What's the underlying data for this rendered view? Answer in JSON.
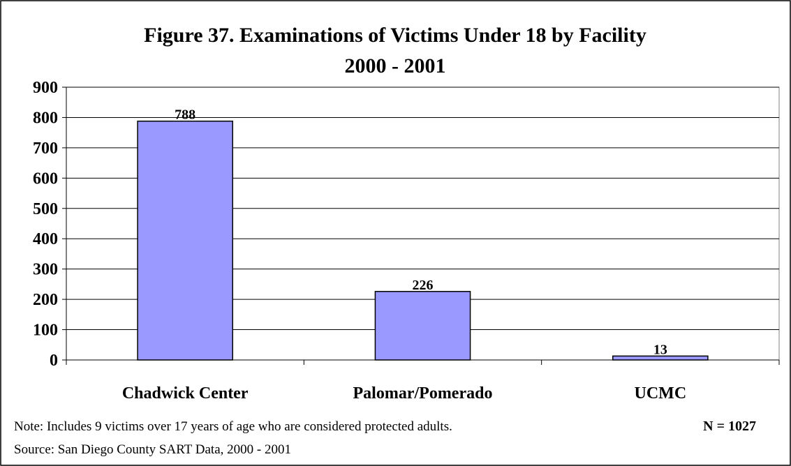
{
  "chart_data": {
    "type": "bar",
    "title": [
      "Figure 37. Examinations of Victims Under 18 by Facility",
      "2000 - 2001"
    ],
    "categories": [
      "Chadwick Center",
      "Palomar/Pomerado",
      "UCMC"
    ],
    "values": [
      788,
      226,
      13
    ],
    "color": "#9999ff",
    "ylim": [
      0,
      900
    ],
    "yticks": [
      0,
      100,
      200,
      300,
      400,
      500,
      600,
      700,
      800,
      900
    ],
    "grid": true,
    "notes": [
      "Note:  Includes 9 victims over 17 years of age who are considered protected adults.",
      "Source:  San Diego County SART Data, 2000 - 2001"
    ],
    "annotation": "N = 1027"
  }
}
